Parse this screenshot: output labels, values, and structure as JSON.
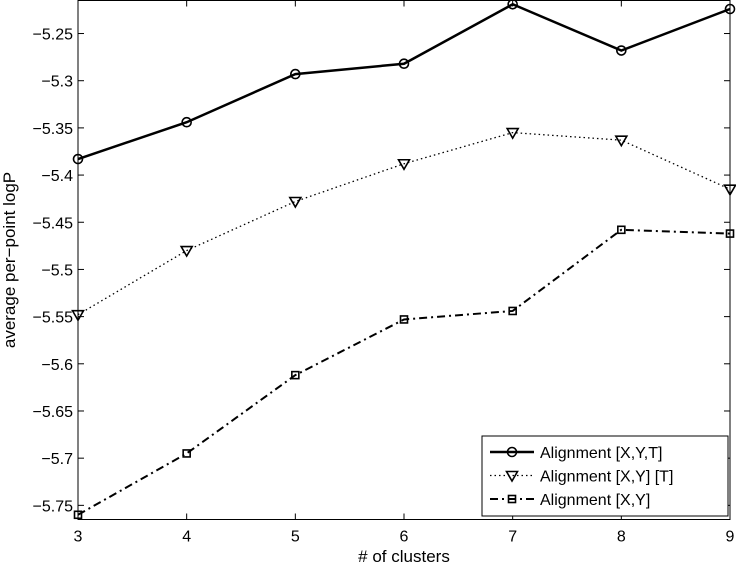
{
  "chart_data": {
    "type": "line",
    "title": "",
    "xlabel": "# of clusters",
    "ylabel": "average per−point  logP",
    "x": [
      3,
      4,
      5,
      6,
      7,
      8,
      9
    ],
    "xlim": [
      3,
      9
    ],
    "ylim": [
      -5.765,
      -5.215
    ],
    "xticks": [
      3,
      4,
      5,
      6,
      7,
      8,
      9
    ],
    "yticks": [
      -5.75,
      -5.7,
      -5.65,
      -5.6,
      -5.55,
      -5.5,
      -5.45,
      -5.4,
      -5.35,
      -5.3,
      -5.25
    ],
    "ytick_labels": [
      "−5.75",
      "−5.7",
      "−5.65",
      "−5.6",
      "−5.55",
      "−5.5",
      "−5.45",
      "−5.4",
      "−5.35",
      "−5.3",
      "−5.25"
    ],
    "grid": false,
    "legend_position": "bottom-right",
    "series": [
      {
        "name": "Alignment [X,Y,T]",
        "values": [
          -5.383,
          -5.344,
          -5.293,
          -5.282,
          -5.219,
          -5.268,
          -5.224
        ],
        "linestyle": "solid",
        "marker": "circle",
        "color": "#000000"
      },
      {
        "name": "Alignment [X,Y] [T]",
        "values": [
          -5.548,
          -5.48,
          -5.428,
          -5.388,
          -5.355,
          -5.363,
          -5.415
        ],
        "linestyle": "dotted",
        "marker": "triangle-down",
        "color": "#000000"
      },
      {
        "name": "Alignment [X,Y]",
        "values": [
          -5.76,
          -5.695,
          -5.612,
          -5.553,
          -5.544,
          -5.458,
          -5.462
        ],
        "linestyle": "dashdot",
        "marker": "square",
        "color": "#000000"
      }
    ]
  }
}
